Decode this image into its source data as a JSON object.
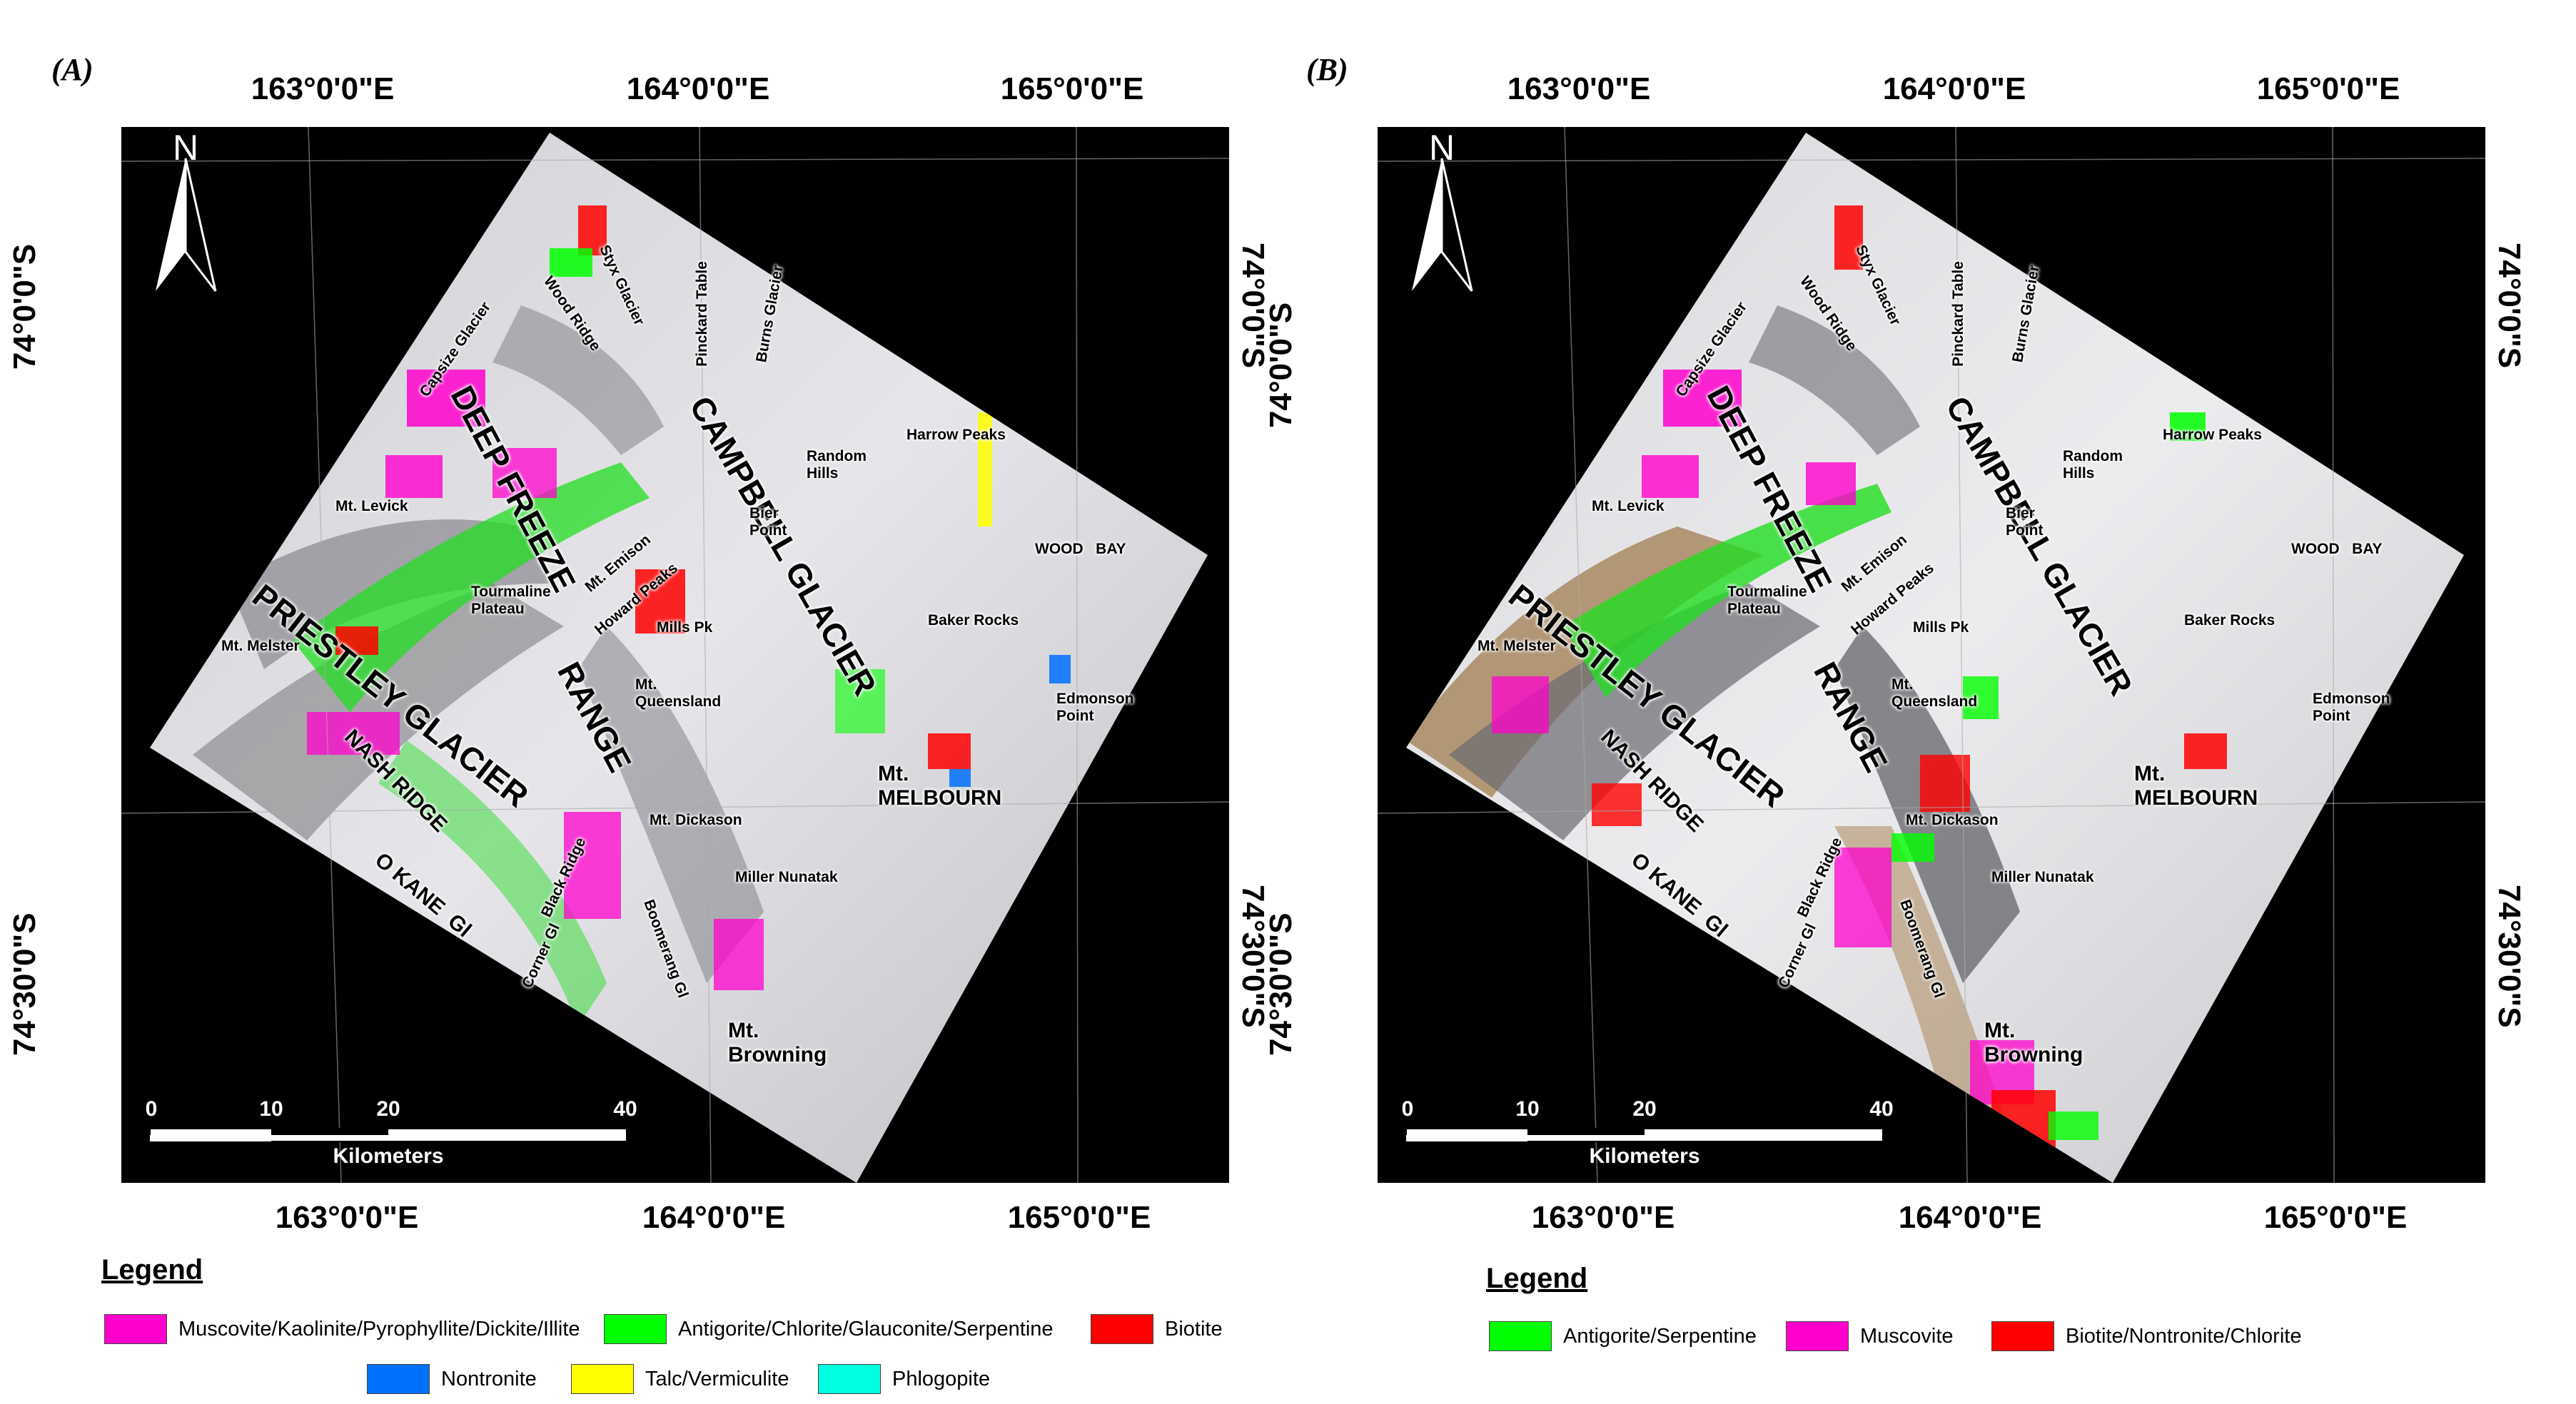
{
  "panels": [
    {
      "letter": "(A)",
      "top_lon": [
        "163°0'0\"E",
        "164°0'0\"E",
        "165°0'0\"E"
      ],
      "bottom_lon": [
        "163°0'0\"E",
        "164°0'0\"E",
        "165°0'0\"E"
      ],
      "lat": [
        "74°0'0\"S",
        "74°30'0\"S"
      ],
      "north": "N",
      "scale": {
        "ticks": [
          "0",
          "10",
          "20",
          "40"
        ],
        "unit": "Kilometers"
      },
      "labels": {
        "capsize": "Capsize Glacier",
        "wood_ridge": "Wood Ridge",
        "styx": "Styx Glacier",
        "pinckard": "Pinckard Table",
        "burns": "Burns Glacier",
        "deep_freeze": "DEEP FREEZE",
        "campbell": "CAMPBELL GLACIER",
        "random_hills": "Random\nHills",
        "harrow": "Harrow Peaks",
        "levick": "Mt. Levick",
        "bier": "Bier\nPoint",
        "wood_bay": "WOOD   BAY",
        "priestley": "PRIESTLEY GLACIER",
        "tourmaline": "Tourmaline\nPlateau",
        "emison": "Mt. Emison",
        "howard": "Howard Peaks",
        "mills": "Mills Pk",
        "baker": "Baker Rocks",
        "melster": "Mt. Melster",
        "range": "RANGE",
        "queensland": "Mt.\nQueensland",
        "edmonson": "Edmonson\nPoint",
        "nash": "NASH RIDGE",
        "melbourn": "Mt.\nMELBOURN",
        "dickason": "Mt. Dickason",
        "black_ridge": "Black Ridge",
        "okane": "O KANE  Gl",
        "miller": "Miller Nunatak",
        "corner": "Corner Gl",
        "boomerang": "Boomerang Gl",
        "browning": "Mt.\nBrowning"
      },
      "legend": {
        "title": "Legend",
        "items": [
          {
            "label": "Muscovite/Kaolinite/Pyrophyllite/Dickite/Illite",
            "color": "#ff00cc"
          },
          {
            "label": "Antigorite/Chlorite/Glauconite/Serpentine",
            "color": "#00ff00"
          },
          {
            "label": "Biotite",
            "color": "#ff0000"
          },
          {
            "label": "Nontronite",
            "color": "#0070ff"
          },
          {
            "label": "Talc/Vermiculite",
            "color": "#ffff00"
          },
          {
            "label": "Phlogopite",
            "color": "#00ffe0"
          }
        ]
      }
    },
    {
      "letter": "(B)",
      "top_lon": [
        "163°0'0\"E",
        "164°0'0\"E",
        "165°0'0\"E"
      ],
      "bottom_lon": [
        "163°0'0\"E",
        "164°0'0\"E",
        "165°0'0\"E"
      ],
      "lat": [
        "74°0'0\"S",
        "74°30'0\"S"
      ],
      "north": "N",
      "scale": {
        "ticks": [
          "0",
          "10",
          "20",
          "40"
        ],
        "unit": "Kilometers"
      },
      "labels": {
        "capsize": "Capsize Glacier",
        "wood_ridge": "Wood Ridge",
        "styx": "Styx Glacier",
        "pinckard": "Pinckard Table",
        "burns": "Burns Glacier",
        "deep_freeze": "DEEP FREEZE",
        "campbell": "CAMPBELL GLACIER",
        "random_hills": "Random\nHills",
        "harrow": "Harrow Peaks",
        "levick": "Mt. Levick",
        "bier": "Bier\nPoint",
        "wood_bay": "WOOD   BAY",
        "priestley": "PRIESTLEY GLACIER",
        "tourmaline": "Tourmaline\nPlateau",
        "emison": "Mt. Emison",
        "howard": "Howard Peaks",
        "mills": "Mills Pk",
        "baker": "Baker Rocks",
        "melster": "Mt. Melster",
        "range": "RANGE",
        "queensland": "Mt.\nQueensland",
        "edmonson": "Edmonson\nPoint",
        "nash": "NASH RIDGE",
        "melbourn": "Mt.\nMELBOURN",
        "dickason": "Mt. Dickason",
        "black_ridge": "Black Ridge",
        "okane": "O KANE  Gl",
        "miller": "Miller Nunatak",
        "corner": "Corner Gl",
        "boomerang": "Boomerang Gl",
        "browning": "Mt.\nBrowning"
      },
      "legend": {
        "title": "Legend",
        "items": [
          {
            "label": "Antigorite/Serpentine",
            "color": "#00ff00"
          },
          {
            "label": "Muscovite",
            "color": "#ff00cc"
          },
          {
            "label": "Biotite/Nontronite/Chlorite",
            "color": "#ff0000"
          }
        ]
      }
    }
  ]
}
